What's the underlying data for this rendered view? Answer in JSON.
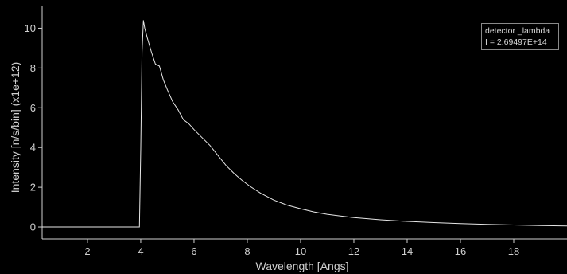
{
  "chart_data": {
    "type": "line",
    "xlabel": "Wavelength [Angs]",
    "ylabel": "Intensity [n/s/bin] (x1e+12)",
    "xlim": [
      0.3,
      20
    ],
    "ylim": [
      -0.6,
      11.1
    ],
    "x_ticks": [
      2,
      4,
      6,
      8,
      10,
      12,
      14,
      16,
      18
    ],
    "y_ticks": [
      0,
      2,
      4,
      6,
      8,
      10
    ],
    "grid": false,
    "legend": {
      "position": "top-right",
      "line1": "detector _lambda",
      "line2": "I = 2.69497E+14"
    },
    "colors": {
      "background": "#000000",
      "line": "#e6e6e6",
      "axis": "#cfcfcf"
    },
    "series": [
      {
        "x": [
          0.3,
          3.95,
          4.0,
          4.05,
          4.1,
          4.15,
          4.25,
          4.4,
          4.55,
          4.7,
          4.85,
          5.0,
          5.2,
          5.4,
          5.6,
          5.8,
          6.0,
          6.3,
          6.6,
          6.9,
          7.2,
          7.5,
          7.8,
          8.1,
          8.5,
          9.0,
          9.5,
          10.0,
          10.5,
          11.0,
          11.5,
          12.0,
          13.0,
          14.0,
          15.0,
          16.0,
          17.0,
          18.0,
          19.0,
          20.0
        ],
        "y": [
          0,
          0,
          4.0,
          8.8,
          10.4,
          10.0,
          9.5,
          8.8,
          8.2,
          8.1,
          7.4,
          6.9,
          6.3,
          5.9,
          5.4,
          5.2,
          4.9,
          4.5,
          4.1,
          3.6,
          3.1,
          2.7,
          2.35,
          2.05,
          1.7,
          1.35,
          1.1,
          0.92,
          0.76,
          0.64,
          0.55,
          0.47,
          0.36,
          0.28,
          0.22,
          0.17,
          0.13,
          0.1,
          0.07,
          0.05
        ]
      }
    ]
  }
}
